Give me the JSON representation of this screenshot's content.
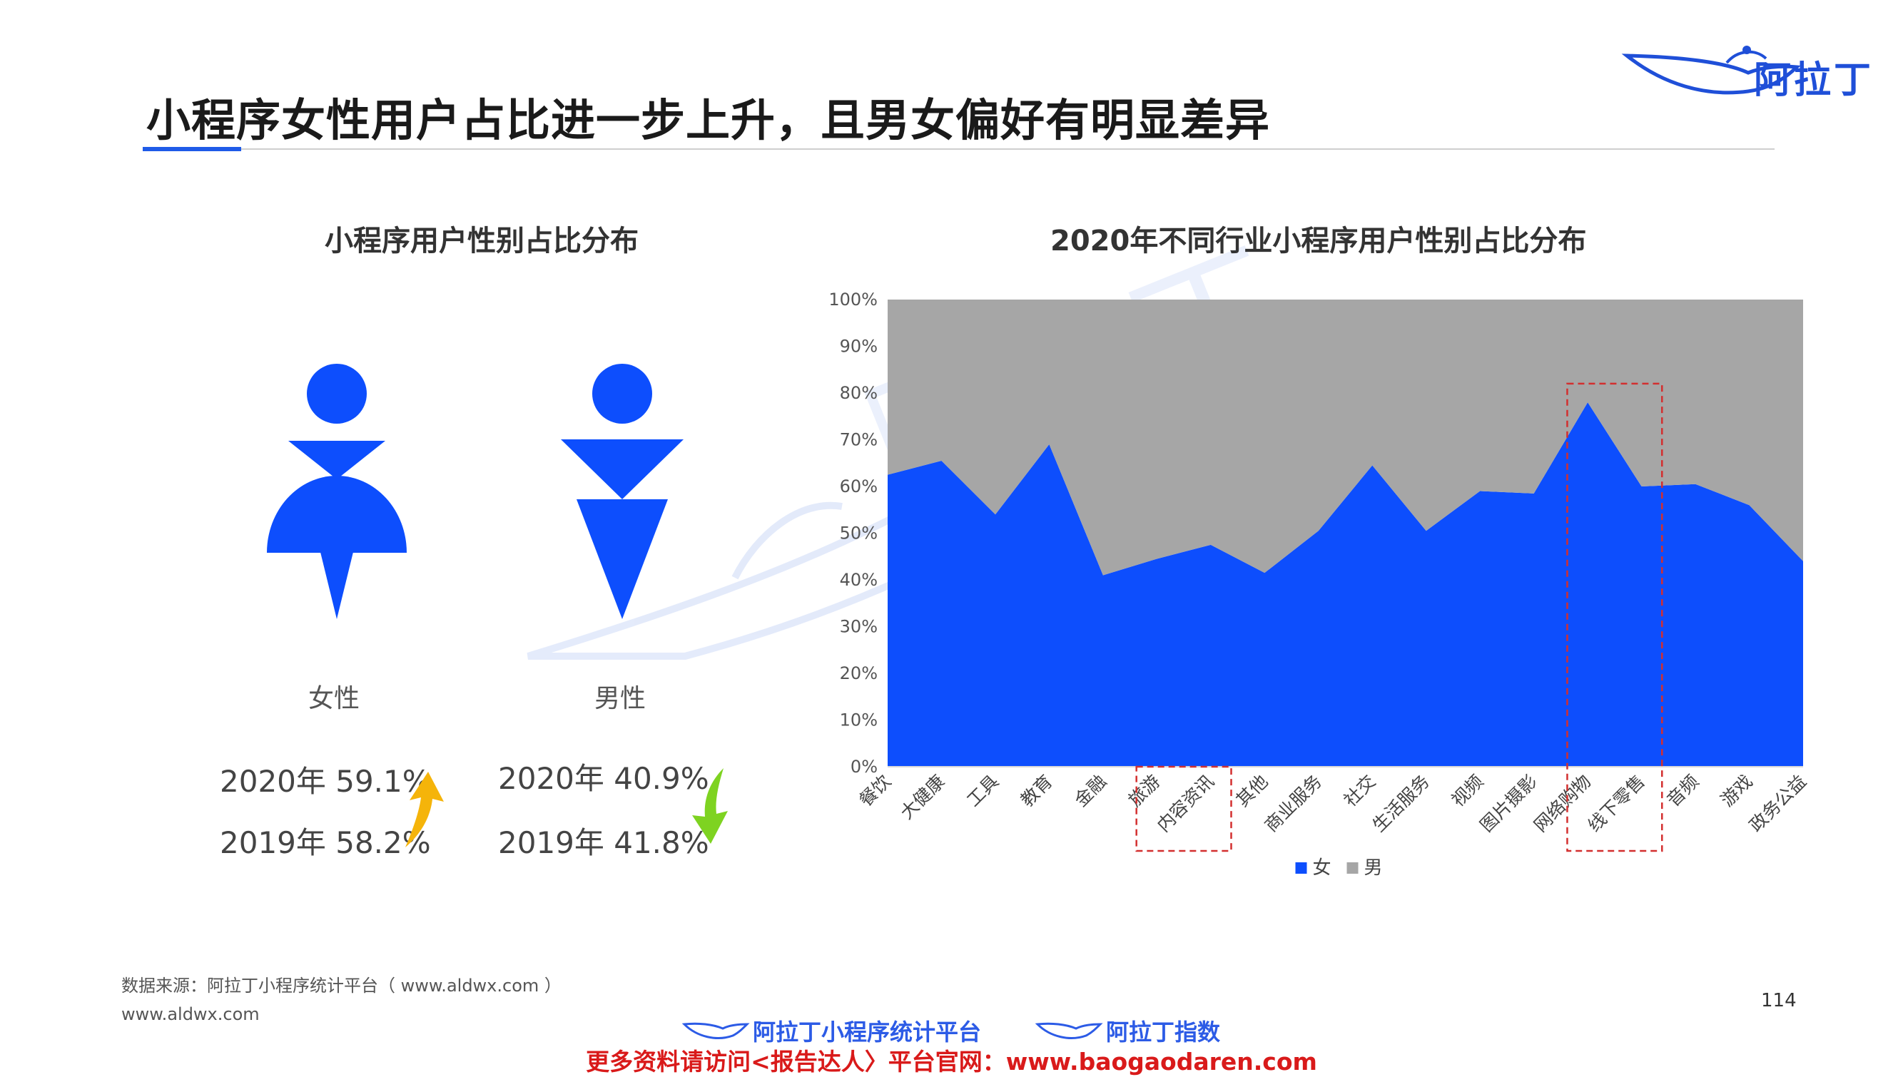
{
  "page": {
    "title": "小程序女性用户占比进一步上升，且男女偏好有明显差异",
    "brand": "阿拉丁",
    "source": "数据来源：阿拉丁小程序统计平台（ www.aldwx.com ）",
    "site": "www.aldwx.com",
    "page_number": "114",
    "footer_link_1": "阿拉丁小程序统计平台",
    "footer_link_2": "阿拉丁指数",
    "footer_ad": "更多资料请访问<报告达人〉平台官网：www.baogaodaren.com",
    "watermark": "阿拉丁"
  },
  "left_panel": {
    "title": "小程序用户性别占比分布",
    "female_label": "女性",
    "male_label": "男性",
    "female_2020": "2020年 59.1%",
    "female_2019": "2019年 58.2%",
    "male_2020": "2020年 40.9%",
    "male_2019": "2019年 41.8%",
    "icon_color": "#0d4efd",
    "up_arrow_color": "#f5b40a",
    "down_arrow_color": "#7ed321"
  },
  "chart_data": {
    "type": "area",
    "stacked": true,
    "percent": true,
    "title": "2020年不同行业小程序用户性别占比分布",
    "categories": [
      "餐饮",
      "大健康",
      "工具",
      "教育",
      "金融",
      "旅游",
      "内容资讯",
      "其他",
      "商业服务",
      "社交",
      "生活服务",
      "视频",
      "图片摄影",
      "网络购物",
      "线下零售",
      "音频",
      "游戏",
      "政务公益"
    ],
    "series": [
      {
        "name": "女",
        "color": "#0d4efd",
        "values": [
          62.5,
          65.5,
          54,
          69,
          41,
          44.5,
          47.5,
          41.5,
          50.5,
          64.5,
          50.5,
          59,
          58.5,
          78,
          60,
          60.5,
          56,
          44
        ]
      },
      {
        "name": "男",
        "color": "#a6a6a6",
        "values": [
          37.5,
          34.5,
          46,
          31,
          59,
          55.5,
          52.5,
          58.5,
          49.5,
          35.5,
          49.5,
          41,
          41.5,
          22,
          40,
          39.5,
          44,
          56
        ]
      }
    ],
    "y_ticks": [
      "0%",
      "10%",
      "20%",
      "30%",
      "40%",
      "50%",
      "60%",
      "70%",
      "80%",
      "90%",
      "100%"
    ],
    "ylim": [
      0,
      100
    ],
    "legend_position": "bottom",
    "highlight_groups": [
      [
        "旅游",
        "内容资讯"
      ],
      [
        "网络购物",
        "线下零售"
      ]
    ],
    "highlight_color": "#d32f2f"
  }
}
